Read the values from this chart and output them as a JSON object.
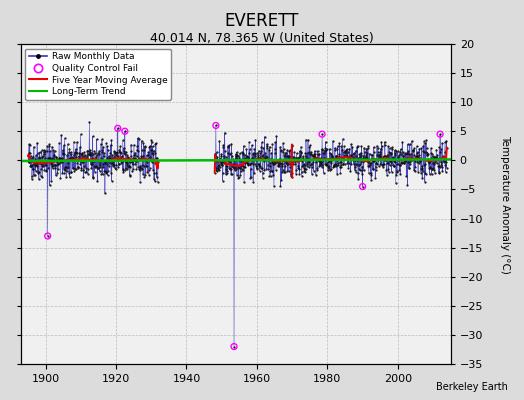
{
  "title": "EVERETT",
  "subtitle": "40.014 N, 78.365 W (United States)",
  "ylabel": "Temperature Anomaly (°C)",
  "credit": "Berkeley Earth",
  "ylim": [
    -35,
    20
  ],
  "yticks": [
    -35,
    -30,
    -25,
    -20,
    -15,
    -10,
    -5,
    0,
    5,
    10,
    15,
    20
  ],
  "xlim": [
    1893,
    2015
  ],
  "xticks": [
    1900,
    1920,
    1940,
    1960,
    1980,
    2000
  ],
  "bg_color": "#dcdcdc",
  "plot_bg_color": "#f0f0f0",
  "grid_color": "#bbbbbb",
  "raw_line_color": "#3333bb",
  "raw_dot_color": "#111111",
  "qc_fail_color": "#ff00ff",
  "moving_avg_color": "#ee0000",
  "trend_color": "#00bb00",
  "seed": 42,
  "seg1_start": 1895.0,
  "seg1_end": 1932.0,
  "seg2_start": 1948.0,
  "seg2_end": 1970.0,
  "seg3_start": 1970.0,
  "seg3_end": 2014.0,
  "outlier1_year": 1900.6,
  "outlier1_val": -13.0,
  "outlier2_year": 1953.5,
  "outlier2_val": -32.0,
  "outlier3_year": 1920.5,
  "outlier3_val": 5.5,
  "outlier4_year": 1922.5,
  "outlier4_val": 5.0,
  "outlier5_year": 1948.3,
  "outlier5_val": 6.0,
  "outlier6_year": 1978.5,
  "outlier6_val": 4.5,
  "outlier7_year": 1990.0,
  "outlier7_val": -4.5,
  "outlier8_year": 2012.0,
  "outlier8_val": 4.5
}
